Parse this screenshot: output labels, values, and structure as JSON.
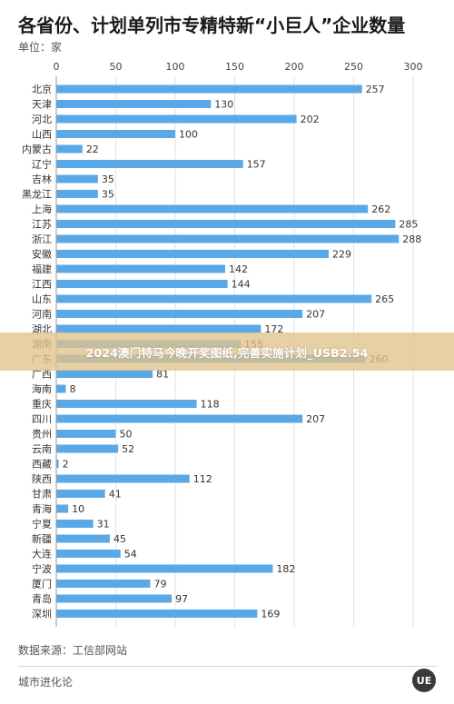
{
  "header": {
    "title": "各省份、计划单列市专精特新“小巨人”企业数量",
    "unit": "单位：家"
  },
  "banner": {
    "text": "2024澳门特马今晚开奖图纸,完善实施计划_USB2.54"
  },
  "footer": {
    "source": "数据来源：工信部网站",
    "brand": "城市进化论",
    "logo_text": "UE"
  },
  "colors": {
    "bar": "#5ba8e6",
    "grid": "#e2e2e2"
  },
  "chart_data": {
    "type": "bar",
    "orientation": "horizontal",
    "title": "各省份、计划单列市专精特新“小巨人”企业数量",
    "unit": "单位：家",
    "xlim": [
      0,
      300
    ],
    "xticks": [
      0,
      50,
      100,
      150,
      200,
      250,
      300
    ],
    "grid": true,
    "categories": [
      "北京",
      "天津",
      "河北",
      "山西",
      "内蒙古",
      "辽宁",
      "吉林",
      "黑龙江",
      "上海",
      "江苏",
      "浙江",
      "安徽",
      "福建",
      "江西",
      "山东",
      "河南",
      "湖北",
      "湖南",
      "广东",
      "广西",
      "海南",
      "重庆",
      "四川",
      "贵州",
      "云南",
      "西藏",
      "陕西",
      "甘肃",
      "青海",
      "宁夏",
      "新疆",
      "大连",
      "宁波",
      "厦门",
      "青岛",
      "深圳"
    ],
    "values": [
      257,
      130,
      202,
      100,
      22,
      157,
      35,
      35,
      262,
      285,
      288,
      229,
      142,
      144,
      265,
      207,
      172,
      155,
      260,
      81,
      8,
      118,
      207,
      50,
      52,
      2,
      112,
      41,
      10,
      31,
      45,
      54,
      182,
      79,
      97,
      169
    ]
  }
}
